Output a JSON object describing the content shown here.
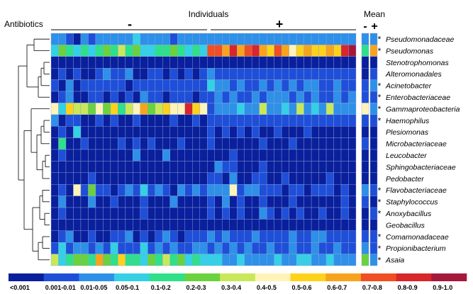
{
  "chart_data": {
    "type": "heatmap",
    "title": "",
    "column_group_header": "Individuals",
    "row_group_label": "Antibiotics",
    "groups": [
      {
        "sign": "-",
        "n_individuals": 20
      },
      {
        "sign": "+",
        "n_individuals": 21
      }
    ],
    "mean_header": "Mean",
    "mean_columns": [
      "-",
      "+"
    ],
    "taxa": [
      "Pseudomonadaceae",
      "Pseudomonas",
      "Stenotrophomonas",
      "Alteromonadales",
      "Acinetobacter",
      "Enterobacteriaceae",
      "Gammaproteobacteria",
      "Haemophilus",
      "Plesiomonas",
      "Microbacteriaceae",
      "Leucobacter",
      "Sphingobacteriaceae",
      "Pedobacter",
      "Flavobacteriaceae",
      "Staphylococcus",
      "Anoxybacillus",
      "Geobacillus",
      "Comamonadaceae",
      "Propionibacterium",
      "Asaia"
    ],
    "significant": [
      true,
      true,
      false,
      false,
      true,
      true,
      true,
      true,
      false,
      false,
      false,
      false,
      false,
      true,
      true,
      true,
      false,
      true,
      true,
      true
    ],
    "star_symbol": "*",
    "scale_bins": [
      "<0.001",
      "0.001-0.01",
      "0.01-0.05",
      "0.05-0.1",
      "0.1-0.2",
      "0.2-0.3",
      "0.3-0.4",
      "0.4-0.5",
      "0.5-0.6",
      "0.6-0.7",
      "0.7-0.8",
      "0.8-0.9",
      "0.9-1.0"
    ],
    "scale_colors": [
      "#0a1f9c",
      "#1f4fd8",
      "#2e90e8",
      "#34d0e6",
      "#2ee08a",
      "#6ad23c",
      "#c8e85a",
      "#fff3b8",
      "#ffd21a",
      "#f7a41c",
      "#ef4f23",
      "#d8262a",
      "#a5183c"
    ],
    "cells": [
      [
        2,
        2,
        1,
        0,
        2,
        1,
        2,
        2,
        2,
        2,
        2,
        3,
        2,
        2,
        2,
        2,
        1,
        2,
        2,
        2,
        2,
        2,
        2,
        2,
        2,
        2,
        2,
        2,
        2,
        2,
        2,
        2,
        2,
        2,
        2,
        2,
        2,
        2,
        2,
        2,
        2
      ],
      [
        3,
        5,
        4,
        3,
        4,
        3,
        4,
        5,
        4,
        6,
        4,
        5,
        3,
        3,
        4,
        4,
        5,
        4,
        3,
        4,
        3,
        10,
        10,
        9,
        11,
        9,
        10,
        11,
        9,
        8,
        10,
        9,
        7,
        8,
        9,
        8,
        8,
        9,
        8,
        11,
        12
      ],
      [
        0,
        0,
        0,
        0,
        0,
        0,
        0,
        0,
        0,
        0,
        0,
        0,
        0,
        0,
        0,
        0,
        0,
        0,
        0,
        0,
        0,
        0,
        0,
        0,
        0,
        0,
        0,
        0,
        0,
        0,
        0,
        0,
        0,
        0,
        0,
        0,
        0,
        0,
        0,
        0,
        0
      ],
      [
        0,
        1,
        0,
        1,
        0,
        0,
        1,
        2,
        1,
        1,
        2,
        0,
        0,
        1,
        1,
        0,
        1,
        0,
        1,
        0,
        1,
        2,
        1,
        1,
        1,
        1,
        1,
        1,
        1,
        1,
        1,
        1,
        1,
        1,
        1,
        1,
        1,
        1,
        1,
        1,
        1
      ],
      [
        1,
        0,
        2,
        0,
        1,
        1,
        1,
        1,
        1,
        1,
        0,
        1,
        1,
        1,
        1,
        1,
        1,
        1,
        1,
        1,
        1,
        3,
        2,
        2,
        1,
        2,
        1,
        1,
        2,
        1,
        2,
        1,
        2,
        1,
        2,
        2,
        1,
        1,
        2,
        1,
        1
      ],
      [
        0,
        1,
        2,
        0,
        0,
        1,
        1,
        0,
        1,
        0,
        1,
        0,
        2,
        1,
        1,
        0,
        1,
        1,
        1,
        0,
        1,
        1,
        2,
        1,
        2,
        1,
        1,
        2,
        1,
        2,
        2,
        2,
        1,
        2,
        1,
        2,
        1,
        1,
        2,
        1,
        2
      ],
      [
        7,
        3,
        8,
        6,
        6,
        5,
        7,
        5,
        8,
        4,
        6,
        7,
        9,
        5,
        6,
        8,
        7,
        7,
        11,
        8,
        7,
        1,
        2,
        2,
        2,
        3,
        2,
        2,
        6,
        2,
        2,
        3,
        2,
        6,
        2,
        3,
        2,
        6,
        2,
        2,
        2
      ],
      [
        2,
        0,
        1,
        1,
        0,
        0,
        1,
        0,
        1,
        0,
        0,
        1,
        0,
        0,
        0,
        0,
        1,
        0,
        0,
        1,
        0,
        1,
        1,
        1,
        1,
        1,
        1,
        1,
        1,
        1,
        1,
        1,
        1,
        1,
        1,
        1,
        1,
        1,
        1,
        1,
        1
      ],
      [
        0,
        1,
        0,
        3,
        0,
        0,
        0,
        0,
        0,
        0,
        0,
        0,
        0,
        0,
        0,
        0,
        0,
        0,
        0,
        0,
        0,
        1,
        0,
        1,
        0,
        1,
        0,
        1,
        0,
        0,
        1,
        0,
        0,
        0,
        1,
        0,
        0,
        0,
        0,
        0,
        0
      ],
      [
        0,
        4,
        0,
        0,
        1,
        0,
        0,
        0,
        0,
        1,
        0,
        1,
        0,
        1,
        0,
        0,
        0,
        1,
        0,
        0,
        0,
        1,
        0,
        0,
        0,
        0,
        0,
        0,
        1,
        0,
        0,
        0,
        1,
        0,
        0,
        0,
        0,
        0,
        0,
        0,
        0
      ],
      [
        0,
        1,
        0,
        0,
        0,
        0,
        0,
        0,
        0,
        0,
        0,
        2,
        0,
        0,
        0,
        2,
        0,
        0,
        0,
        0,
        0,
        0,
        0,
        0,
        1,
        0,
        0,
        0,
        0,
        0,
        0,
        0,
        0,
        0,
        0,
        0,
        0,
        0,
        0,
        0,
        0
      ],
      [
        0,
        0,
        0,
        0,
        0,
        0,
        0,
        0,
        0,
        0,
        0,
        0,
        0,
        0,
        0,
        0,
        0,
        0,
        0,
        0,
        0,
        0,
        2,
        1,
        1,
        0,
        0,
        0,
        1,
        0,
        0,
        0,
        0,
        0,
        0,
        0,
        0,
        0,
        0,
        0,
        0
      ],
      [
        0,
        0,
        0,
        0,
        0,
        1,
        0,
        0,
        0,
        0,
        0,
        0,
        0,
        0,
        0,
        0,
        0,
        0,
        0,
        0,
        0,
        1,
        1,
        0,
        2,
        0,
        0,
        1,
        1,
        0,
        0,
        1,
        0,
        0,
        0,
        0,
        0,
        1,
        0,
        0,
        0
      ],
      [
        0,
        1,
        0,
        7,
        1,
        5,
        1,
        1,
        0,
        1,
        2,
        1,
        3,
        1,
        2,
        1,
        0,
        2,
        1,
        2,
        1,
        2,
        2,
        2,
        7,
        1,
        2,
        2,
        1,
        1,
        1,
        0,
        1,
        1,
        0,
        1,
        1,
        1,
        0,
        1,
        0
      ],
      [
        0,
        2,
        0,
        0,
        0,
        2,
        0,
        0,
        1,
        0,
        0,
        0,
        1,
        0,
        0,
        0,
        2,
        0,
        0,
        0,
        0,
        1,
        0,
        2,
        0,
        1,
        0,
        0,
        1,
        0,
        0,
        0,
        1,
        0,
        0,
        0,
        0,
        0,
        0,
        1,
        0
      ],
      [
        0,
        1,
        0,
        0,
        0,
        0,
        0,
        0,
        0,
        0,
        0,
        0,
        1,
        0,
        0,
        0,
        0,
        0,
        0,
        0,
        0,
        1,
        0,
        1,
        0,
        1,
        0,
        0,
        2,
        1,
        0,
        1,
        0,
        1,
        0,
        0,
        1,
        0,
        0,
        1,
        0
      ],
      [
        0,
        0,
        0,
        0,
        0,
        0,
        0,
        0,
        0,
        0,
        0,
        0,
        0,
        0,
        0,
        0,
        0,
        0,
        0,
        0,
        0,
        0,
        0,
        0,
        0,
        0,
        0,
        0,
        0,
        0,
        0,
        0,
        0,
        0,
        0,
        0,
        0,
        0,
        0,
        0,
        0
      ],
      [
        0,
        1,
        2,
        0,
        0,
        1,
        0,
        0,
        1,
        1,
        2,
        0,
        1,
        0,
        1,
        2,
        1,
        0,
        1,
        1,
        1,
        2,
        1,
        2,
        1,
        1,
        1,
        2,
        1,
        1,
        1,
        1,
        2,
        1,
        1,
        2,
        2,
        1,
        1,
        1,
        1
      ],
      [
        1,
        3,
        1,
        2,
        2,
        1,
        2,
        1,
        3,
        1,
        1,
        1,
        3,
        1,
        2,
        1,
        2,
        1,
        1,
        2,
        2,
        1,
        2,
        1,
        2,
        1,
        2,
        1,
        1,
        2,
        1,
        1,
        2,
        1,
        1,
        2,
        1,
        1,
        2,
        1,
        1
      ],
      [
        6,
        3,
        4,
        5,
        5,
        4,
        9,
        5,
        4,
        8,
        4,
        4,
        3,
        5,
        4,
        6,
        4,
        5,
        3,
        4,
        3,
        3,
        3,
        2,
        2,
        3,
        2,
        2,
        2,
        2,
        3,
        2,
        2,
        3,
        3,
        2,
        2,
        3,
        2,
        2,
        2
      ]
    ],
    "mean_cells": [
      [
        2,
        2
      ],
      [
        4,
        9
      ],
      [
        0,
        0
      ],
      [
        0,
        1
      ],
      [
        1,
        2
      ],
      [
        1,
        1
      ],
      [
        7,
        2
      ],
      [
        1,
        1
      ],
      [
        0,
        0
      ],
      [
        1,
        0
      ],
      [
        0,
        0
      ],
      [
        0,
        0
      ],
      [
        0,
        0
      ],
      [
        2,
        1
      ],
      [
        1,
        0
      ],
      [
        0,
        1
      ],
      [
        0,
        0
      ],
      [
        1,
        1
      ],
      [
        2,
        1
      ],
      [
        5,
        2
      ]
    ]
  }
}
